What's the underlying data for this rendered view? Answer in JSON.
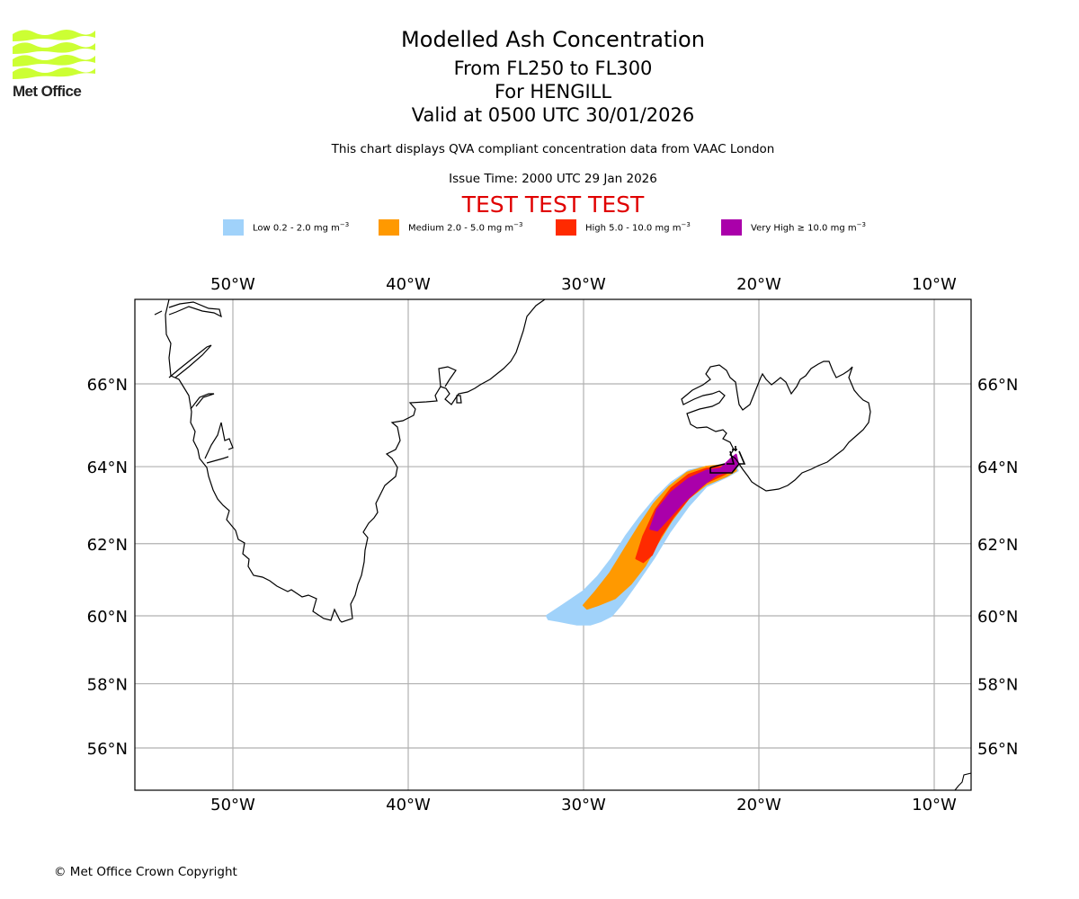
{
  "logo": {
    "text": "Met Office",
    "color": "#ccff33"
  },
  "header": {
    "title": "Modelled Ash Concentration",
    "levels": "From FL250 to FL300",
    "volcano": "For HENGILL",
    "valid": "Valid at 0500 UTC 30/01/2026",
    "description": "This chart displays QVA compliant concentration data from VAAC London",
    "issue_time": "Issue Time: 2000 UTC 29 Jan 2026",
    "test_banner": "TEST TEST TEST",
    "test_color": "#e00000"
  },
  "legend": [
    {
      "name": "Low",
      "label": "Low 0.2 - 2.0 mg m",
      "exp": "−3",
      "color": "#a0d2fa"
    },
    {
      "name": "Medium",
      "label": "Medium 2.0 - 5.0 mg m",
      "exp": "−3",
      "color": "#ff9900"
    },
    {
      "name": "High",
      "label": "High 5.0 - 10.0 mg m",
      "exp": "−3",
      "color": "#ff2a00"
    },
    {
      "name": "Very High",
      "label": "Very High  ≥  10.0 mg m",
      "exp": "−3",
      "color": "#aa00aa"
    }
  ],
  "chart_data": {
    "type": "map",
    "title": "Modelled Ash Concentration",
    "projection": "plate-carree",
    "lon_range": [
      -55.6,
      -7.9
    ],
    "lat_range": [
      54.9,
      68.6
    ],
    "grid": true,
    "x_ticks": [
      "50°W",
      "40°W",
      "30°W",
      "20°W",
      "10°W"
    ],
    "x_tick_values": [
      -50,
      -40,
      -30,
      -20,
      -10
    ],
    "y_ticks": [
      "56°N",
      "58°N",
      "60°N",
      "62°N",
      "64°N",
      "66°N"
    ],
    "y_tick_values": [
      56,
      58,
      60,
      62,
      64,
      66
    ],
    "volcano": {
      "name": "HENGILL",
      "lon": -21.3,
      "lat": 64.1
    },
    "ash_layers": [
      {
        "level": "Low",
        "color": "#a0d2fa",
        "polygon": [
          [
            -32.1,
            60.0
          ],
          [
            -31.2,
            60.3
          ],
          [
            -30.0,
            60.7
          ],
          [
            -29.2,
            61.1
          ],
          [
            -28.4,
            61.6
          ],
          [
            -27.6,
            62.2
          ],
          [
            -26.8,
            62.7
          ],
          [
            -25.9,
            63.2
          ],
          [
            -25.0,
            63.6
          ],
          [
            -24.0,
            63.9
          ],
          [
            -23.0,
            64.0
          ],
          [
            -21.8,
            64.05
          ],
          [
            -21.4,
            64.1
          ],
          [
            -21.2,
            63.9
          ],
          [
            -21.8,
            63.75
          ],
          [
            -23.0,
            63.5
          ],
          [
            -24.0,
            63.0
          ],
          [
            -25.1,
            62.3
          ],
          [
            -26.0,
            61.6
          ],
          [
            -27.0,
            60.9
          ],
          [
            -27.8,
            60.35
          ],
          [
            -28.4,
            60.0
          ],
          [
            -29.0,
            59.85
          ],
          [
            -29.6,
            59.75
          ],
          [
            -30.4,
            59.75
          ],
          [
            -31.4,
            59.85
          ],
          [
            -32.0,
            59.9
          ]
        ]
      },
      {
        "level": "Medium",
        "color": "#ff9900",
        "polygon": [
          [
            -30.0,
            60.3
          ],
          [
            -29.3,
            60.7
          ],
          [
            -28.5,
            61.2
          ],
          [
            -27.6,
            61.9
          ],
          [
            -26.8,
            62.5
          ],
          [
            -26.0,
            63.05
          ],
          [
            -25.1,
            63.5
          ],
          [
            -24.1,
            63.85
          ],
          [
            -23.0,
            64.0
          ],
          [
            -21.8,
            64.05
          ],
          [
            -21.4,
            64.1
          ],
          [
            -21.3,
            63.9
          ],
          [
            -21.9,
            63.75
          ],
          [
            -23.0,
            63.55
          ],
          [
            -24.0,
            63.2
          ],
          [
            -25.0,
            62.6
          ],
          [
            -25.8,
            62.0
          ],
          [
            -26.5,
            61.4
          ],
          [
            -27.3,
            60.9
          ],
          [
            -28.2,
            60.5
          ],
          [
            -29.2,
            60.3
          ],
          [
            -29.8,
            60.2
          ]
        ]
      },
      {
        "level": "High",
        "color": "#ff2a00",
        "polygon": [
          [
            -27.0,
            61.6
          ],
          [
            -26.6,
            62.2
          ],
          [
            -25.9,
            62.9
          ],
          [
            -25.0,
            63.45
          ],
          [
            -24.0,
            63.8
          ],
          [
            -23.0,
            63.95
          ],
          [
            -22.0,
            64.0
          ],
          [
            -21.4,
            64.1
          ],
          [
            -21.4,
            63.95
          ],
          [
            -22.0,
            63.8
          ],
          [
            -23.0,
            63.6
          ],
          [
            -24.0,
            63.2
          ],
          [
            -24.9,
            62.7
          ],
          [
            -25.6,
            62.2
          ],
          [
            -26.1,
            61.7
          ],
          [
            -26.6,
            61.5
          ]
        ]
      },
      {
        "level": "Very High",
        "color": "#aa00aa",
        "polygon": [
          [
            -26.2,
            62.4
          ],
          [
            -25.8,
            62.9
          ],
          [
            -25.0,
            63.35
          ],
          [
            -24.0,
            63.7
          ],
          [
            -23.0,
            63.9
          ],
          [
            -22.2,
            63.95
          ],
          [
            -21.6,
            64.2
          ],
          [
            -21.3,
            64.3
          ],
          [
            -21.2,
            64.1
          ],
          [
            -21.5,
            63.9
          ],
          [
            -22.4,
            63.8
          ],
          [
            -23.3,
            63.5
          ],
          [
            -24.3,
            63.1
          ],
          [
            -25.2,
            62.65
          ],
          [
            -25.8,
            62.35
          ]
        ]
      }
    ]
  },
  "footer": {
    "copyright": "© Met Office Crown Copyright"
  }
}
